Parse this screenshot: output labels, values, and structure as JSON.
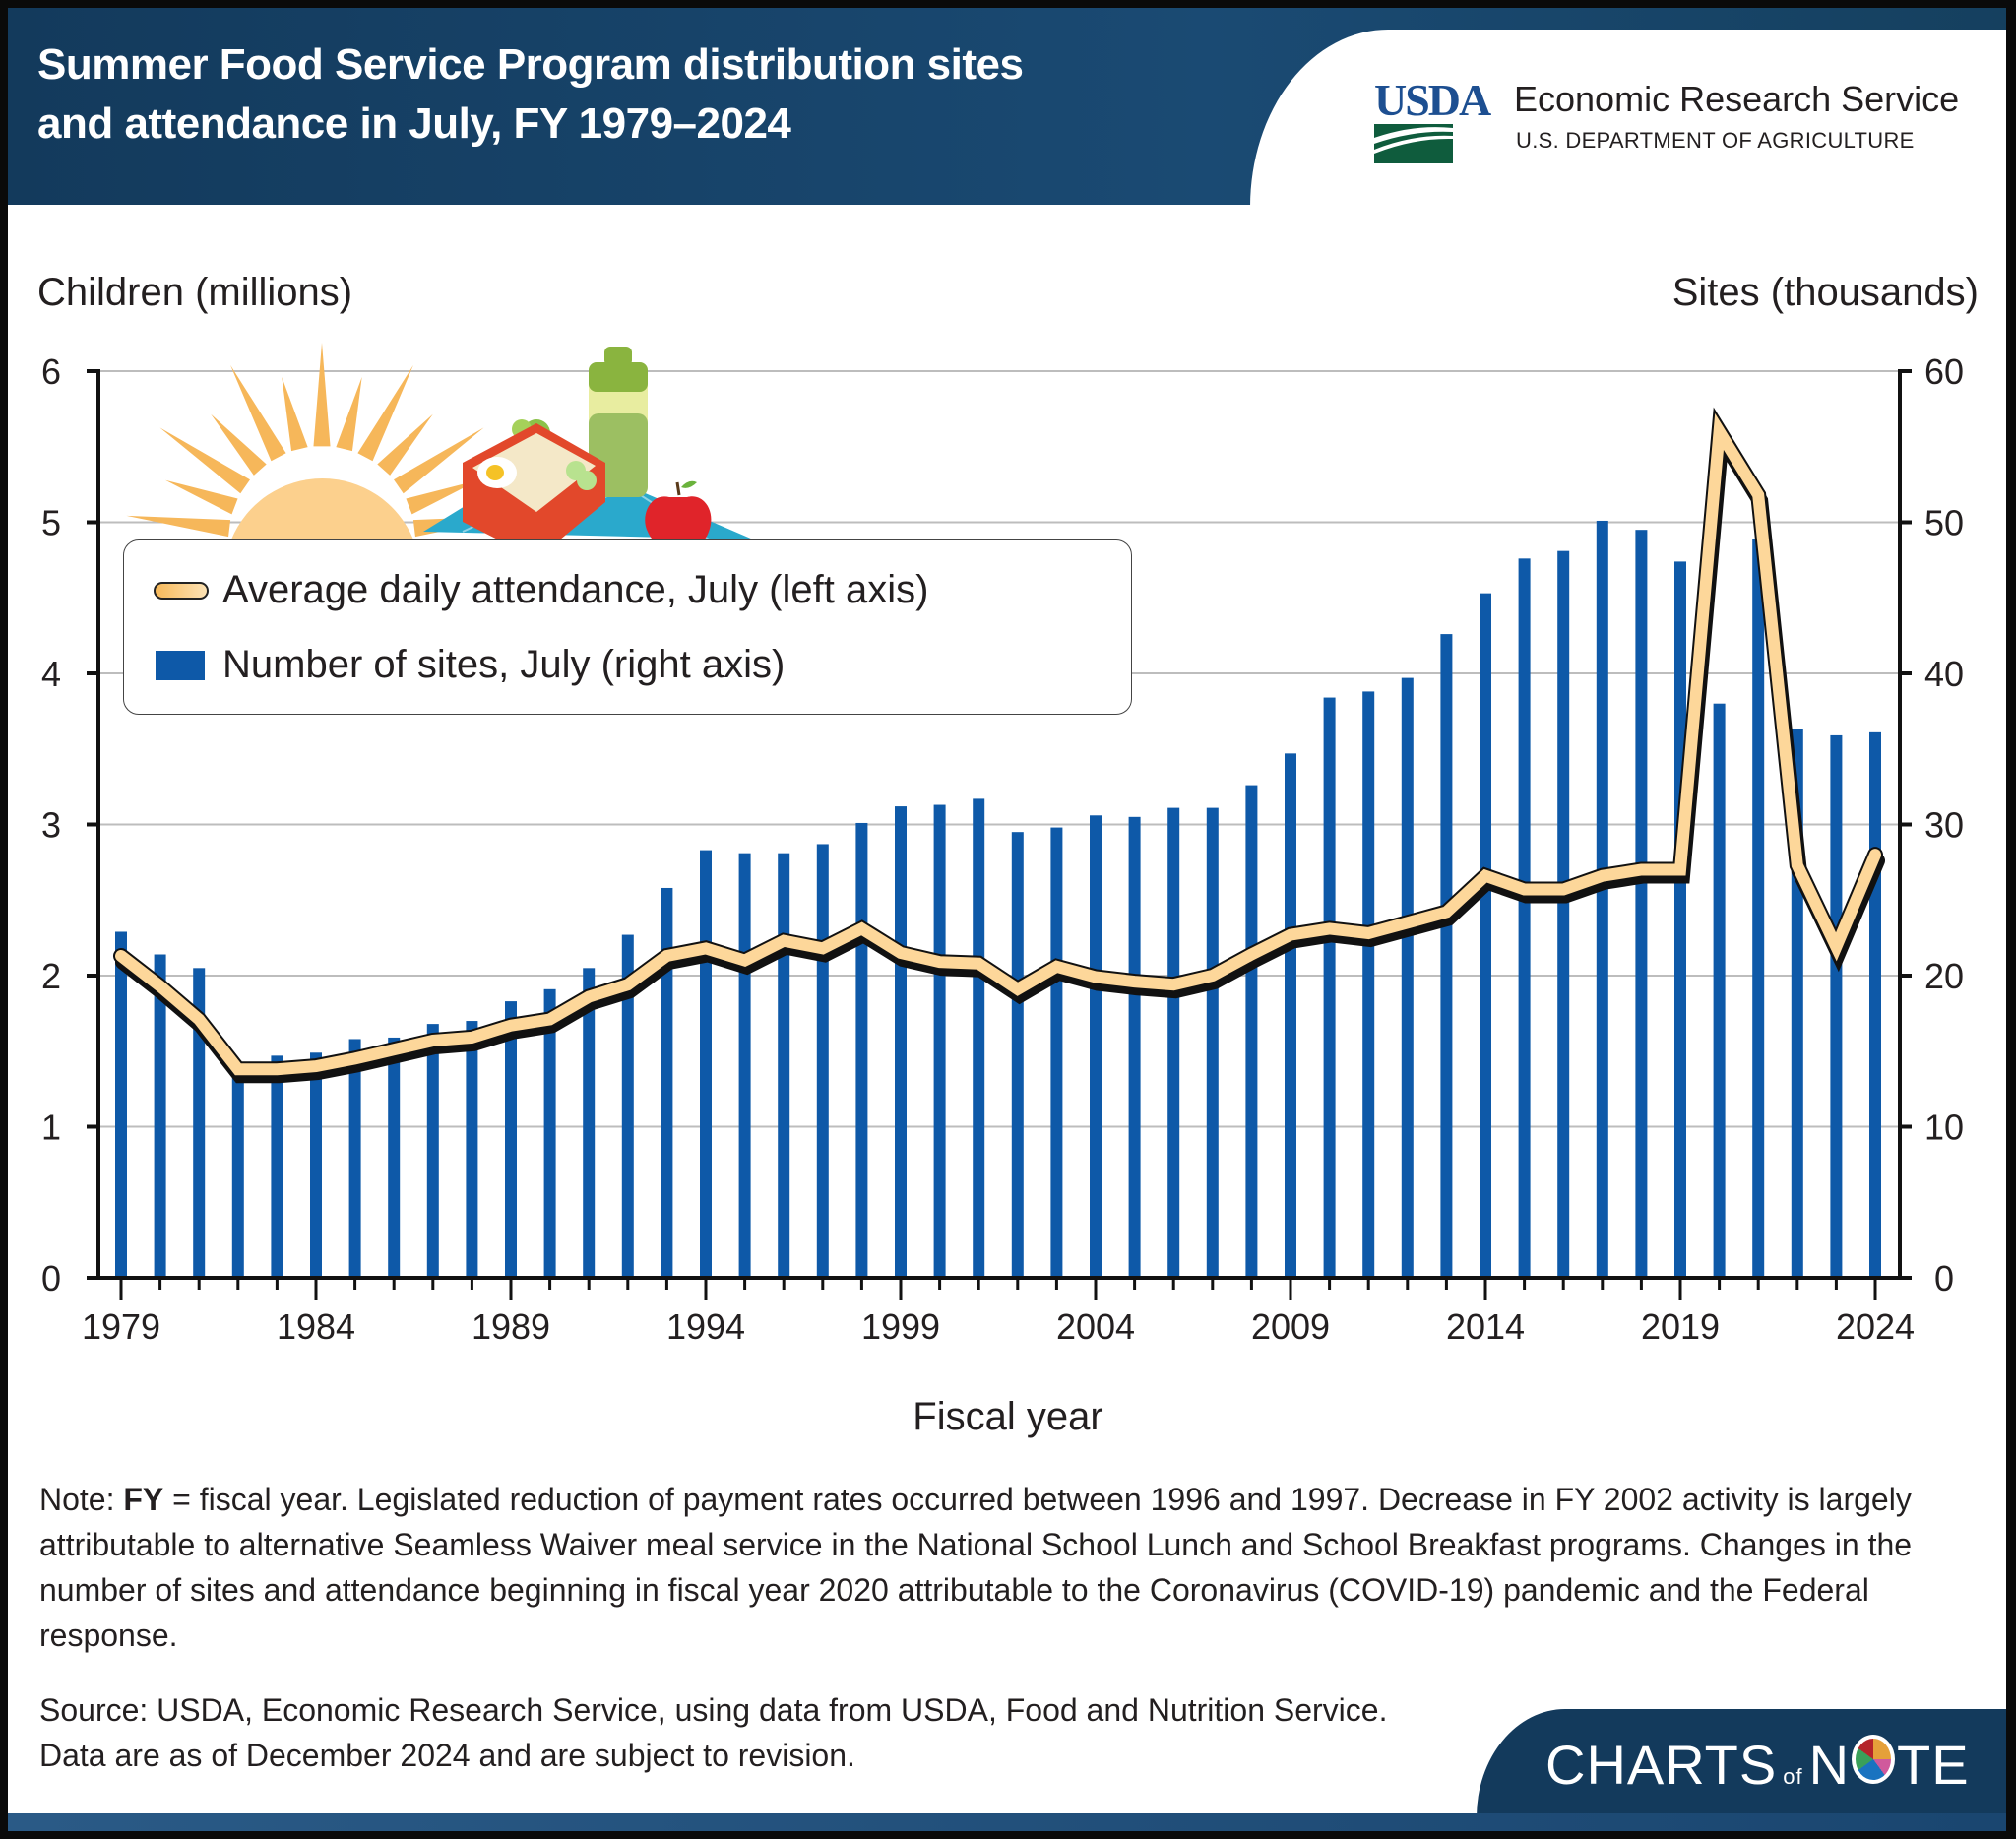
{
  "header": {
    "title_line1": "Summer Food Service Program distribution sites",
    "title_line2": "and attendance in July, FY 1979–2024",
    "logo_mark": "USDA",
    "agency_name": "Economic Research Service",
    "department": "U.S. DEPARTMENT OF AGRICULTURE"
  },
  "illustration": {
    "icons": [
      "sun-icon",
      "lunchbox-icon",
      "water-bottle-icon",
      "apple-icon",
      "picnic-blanket-icon"
    ]
  },
  "legend": {
    "items": [
      {
        "label": "Average daily attendance, July (left axis)",
        "type": "line"
      },
      {
        "label": "Number of sites, July (right axis)",
        "type": "bar"
      }
    ]
  },
  "colors": {
    "header_bg": "#133a5c",
    "bar": "#0e59a8",
    "line_fill": "#fdd79a",
    "line_outline": "#111111",
    "grid": "#bdbdbd",
    "usda_blue": "#1d4f91",
    "usda_green": "#0f5c3d"
  },
  "chart_data": {
    "type": "bar+line",
    "title": "Summer Food Service Program distribution sites and attendance in July, FY 1979–2024",
    "xlabel": "Fiscal year",
    "ylabel_left": "Children (millions)",
    "ylabel_right": "Sites (thousands)",
    "ylim_left": [
      0,
      6
    ],
    "ylim_right": [
      0,
      60
    ],
    "yticks_left": [
      "0",
      "1",
      "2",
      "3",
      "4",
      "5",
      "6"
    ],
    "yticks_right": [
      "0",
      "10",
      "20",
      "30",
      "40",
      "50",
      "60"
    ],
    "xtick_labels": [
      "1979",
      "1984",
      "1989",
      "1994",
      "1999",
      "2004",
      "2009",
      "2014",
      "2019",
      "2024"
    ],
    "grid": true,
    "legend_position": "top-left",
    "x": [
      1979,
      1980,
      1981,
      1982,
      1983,
      1984,
      1985,
      1986,
      1987,
      1988,
      1989,
      1990,
      1991,
      1992,
      1993,
      1994,
      1995,
      1996,
      1997,
      1998,
      1999,
      2000,
      2001,
      2002,
      2003,
      2004,
      2005,
      2006,
      2007,
      2008,
      2009,
      2010,
      2011,
      2012,
      2013,
      2014,
      2015,
      2016,
      2017,
      2018,
      2019,
      2020,
      2021,
      2022,
      2023,
      2024
    ],
    "series": [
      {
        "name": "Number of sites, July (right axis)",
        "type": "bar",
        "axis": "right",
        "values": [
          22.9,
          21.4,
          20.5,
          13.5,
          14.7,
          14.9,
          15.8,
          15.9,
          16.8,
          17.0,
          18.3,
          19.1,
          20.5,
          22.7,
          25.8,
          28.3,
          28.1,
          28.1,
          28.7,
          30.1,
          31.2,
          31.3,
          31.7,
          29.5,
          29.8,
          30.6,
          30.5,
          31.1,
          31.1,
          32.6,
          34.7,
          38.4,
          38.8,
          39.7,
          42.6,
          45.3,
          47.6,
          48.1,
          50.1,
          49.5,
          47.4,
          38.0,
          48.9,
          36.3,
          35.9,
          36.1
        ]
      },
      {
        "name": "Average daily attendance, July (left axis)",
        "type": "line",
        "axis": "left",
        "values": [
          2.13,
          1.93,
          1.71,
          1.38,
          1.38,
          1.4,
          1.45,
          1.51,
          1.57,
          1.59,
          1.67,
          1.71,
          1.86,
          1.94,
          2.13,
          2.18,
          2.1,
          2.23,
          2.18,
          2.31,
          2.15,
          2.09,
          2.08,
          1.91,
          2.06,
          1.99,
          1.96,
          1.94,
          2.0,
          2.14,
          2.27,
          2.31,
          2.28,
          2.35,
          2.42,
          2.66,
          2.57,
          2.57,
          2.66,
          2.7,
          2.7,
          5.6,
          5.18,
          2.73,
          2.19,
          2.8
        ]
      }
    ]
  },
  "footer": {
    "note_prefix": "Note: ",
    "note_bold": "FY",
    "note_text": " = fiscal year. Legislated reduction of payment rates occurred between 1996 and 1997. Decrease in FY 2002 activity is largely attributable to alternative Seamless Waiver meal service in the National School Lunch and School Breakfast programs. Changes in the number of sites and attendance beginning in fiscal year 2020 attributable to the Coronavirus (COVID-19) pandemic and the Federal response.",
    "source": "Source: USDA, Economic Research Service, using data from USDA, Food and Nutrition Service. Data are as of December 2024 and are subject to revision.",
    "brand_charts": "CHARTS",
    "brand_of": "of",
    "brand_n": "N",
    "brand_te": "TE"
  }
}
